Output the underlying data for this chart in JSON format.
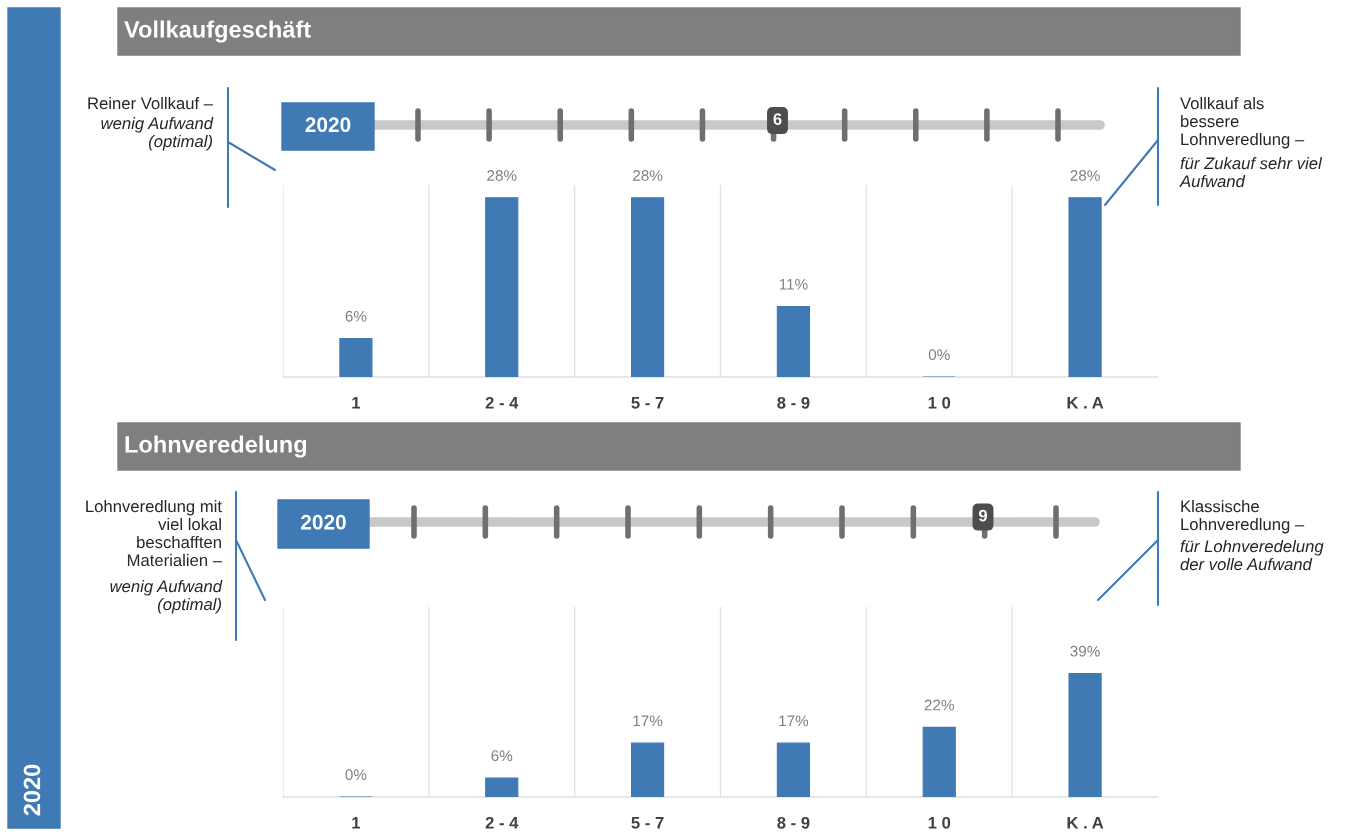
{
  "chart_data": [
    {
      "type": "bar",
      "title": "Vollkaufgeschäft",
      "categories": [
        "1",
        "2 - 4",
        "5 - 7",
        "8 - 9",
        "1 0",
        "K . A"
      ],
      "values": [
        6,
        28,
        28,
        11,
        0,
        28
      ],
      "value_labels": [
        "6%",
        "28%",
        "28%",
        "11%",
        "0%",
        "28%"
      ],
      "color": "#3f7ab5",
      "ylim": [
        0,
        30
      ],
      "grid": "x",
      "annotations": [
        "2020",
        "6",
        "Reiner Vollkauf –",
        "wenig Aufwand\n(optimal)",
        "Vollkauf als\nbessere\nLohnveredlung –",
        "für Zukauf sehr viel\nAufwand",
        "2020"
      ]
    },
    {
      "type": "bar",
      "title": "Lohnveredelung",
      "categories": [
        "1",
        "2 - 4",
        "5 - 7",
        "8 - 9",
        "1 0",
        "K . A"
      ],
      "values": [
        0,
        6,
        17,
        17,
        22,
        39
      ],
      "value_labels": [
        "0%",
        "6%",
        "17%",
        "17%",
        "22%",
        "39%"
      ],
      "color": "#3f7ab5",
      "ylim": [
        0,
        60
      ],
      "grid": "x",
      "annotations": [
        "2020",
        "9",
        "Lohnveredlung mit\nviel lokal\nbeschafften\nMaterialien –",
        "wenig Aufwand\n(optimal)",
        "Klassische\nLohnveredlung –",
        "für Lohnveredelung\nder volle Aufwand"
      ]
    }
  ]
}
